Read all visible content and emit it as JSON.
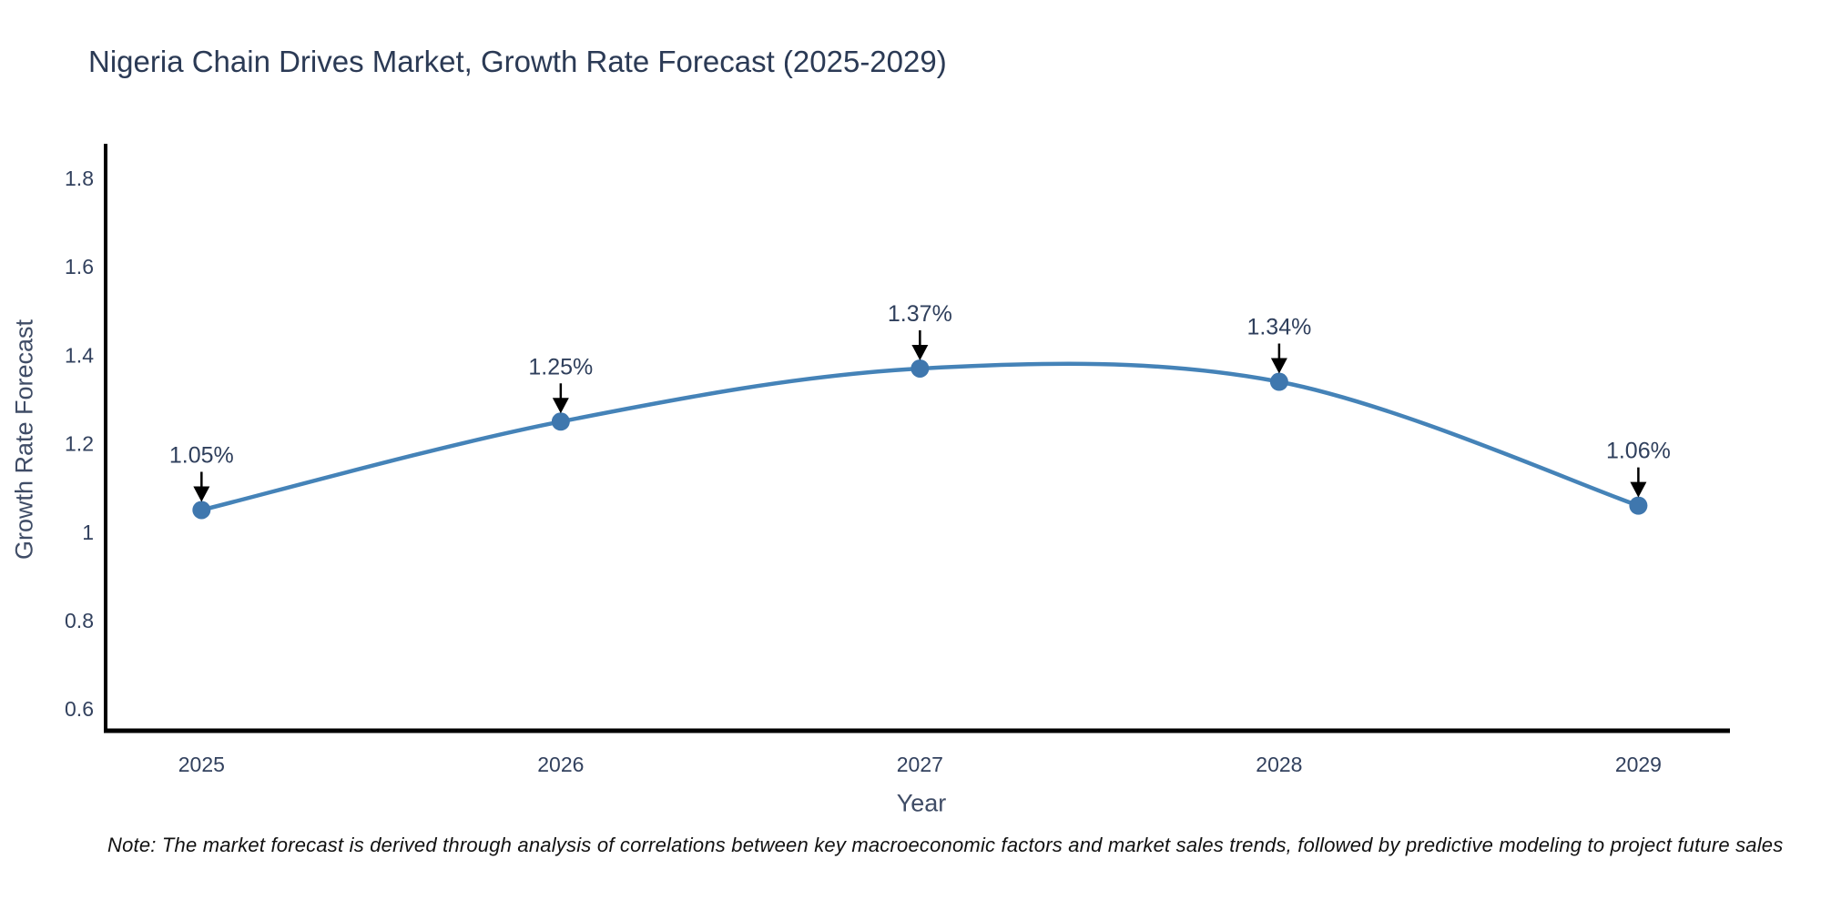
{
  "note": "Note: The market forecast is derived through analysis of correlations between key macroeconomic factors and market sales trends, followed by predictive modeling to project future sales",
  "colors": {
    "background": "#ffffff",
    "line": "#4583b8",
    "marker": "#3f77ae",
    "axis": "#000000",
    "arrow": "#000000",
    "title_text": "#2b3a55",
    "tick_text": "#32415e",
    "axis_title_text": "#3f4c66",
    "annotation_text": "#2f3f5c",
    "note_text": "#111111"
  },
  "chart_data": {
    "type": "line",
    "line_shape": "spline",
    "title": "Nigeria Chain Drives Market, Growth Rate Forecast (2025-2029)",
    "xlabel": "Year",
    "ylabel": "Growth Rate Forecast",
    "x": [
      2025,
      2026,
      2027,
      2028,
      2029
    ],
    "series": [
      {
        "name": "Growth Rate Forecast",
        "values": [
          1.05,
          1.25,
          1.37,
          1.34,
          1.06
        ]
      }
    ],
    "point_labels": [
      "1.05%",
      "1.25%",
      "1.37%",
      "1.34%",
      "1.06%"
    ],
    "x_tick_labels": [
      "2025",
      "2026",
      "2027",
      "2028",
      "2029"
    ],
    "y_tick_labels": [
      "1.8",
      "1.6",
      "1.4",
      "1.2",
      "1",
      "0.8",
      "0.6"
    ],
    "y_ticks": [
      1.8,
      1.6,
      1.4,
      1.2,
      1.0,
      0.8,
      0.6
    ],
    "xlim": [
      2024.733,
      2029.255
    ],
    "ylim": [
      0.551,
      1.874
    ],
    "grid": false,
    "legend": "none",
    "annotations_have_arrows": true
  }
}
